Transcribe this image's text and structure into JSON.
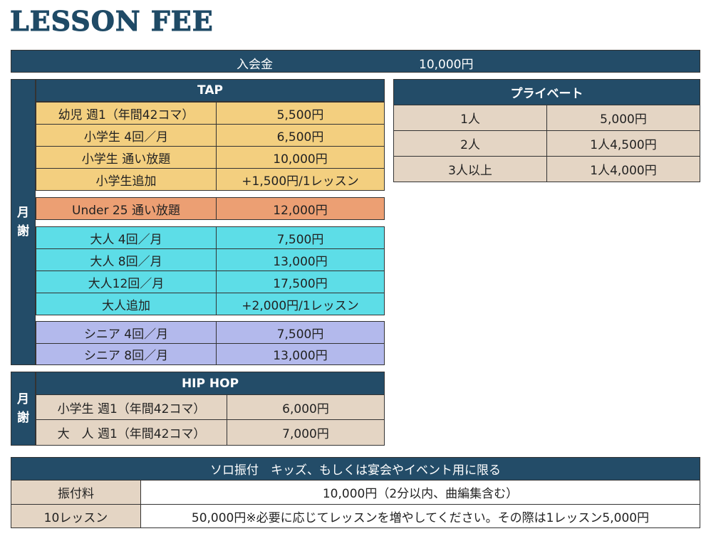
{
  "title": "LESSON FEE",
  "admission": {
    "label": "入会金",
    "price": "10,000円"
  },
  "tap": {
    "header": "TAP",
    "groups": [
      [
        {
          "label": "幼児 週1（年間42コマ）",
          "price": "5,500円"
        },
        {
          "label": "小学生 4回／月",
          "price": "6,500円"
        },
        {
          "label": "小学生 通い放題",
          "price": "10,000円"
        },
        {
          "label": "小学生追加",
          "price": "+1,500円/1レッスン"
        }
      ],
      [
        {
          "label": "Under 25 通い放題",
          "price": "12,000円"
        }
      ],
      [
        {
          "label": "大人 4回／月",
          "price": "7,500円"
        },
        {
          "label": "大人 8回／月",
          "price": "13,000円"
        },
        {
          "label": "大人12回／月",
          "price": "17,500円"
        },
        {
          "label": "大人追加",
          "price": "+2,000円/1レッスン"
        }
      ],
      [
        {
          "label": "シニア 4回／月",
          "price": "7,500円"
        },
        {
          "label": "シニア 8回／月",
          "price": "13,000円"
        }
      ]
    ]
  },
  "monthly_label": {
    "line1": "月",
    "line2": "謝"
  },
  "private": {
    "header": "プライベート",
    "rows": [
      {
        "label": "1人",
        "price": "5,000円"
      },
      {
        "label": "2人",
        "price": "1人4,500円"
      },
      {
        "label": "3人以上",
        "price": "1人4,000円"
      }
    ]
  },
  "hiphop": {
    "header": "HIP HOP",
    "rows": [
      {
        "label": "小学生 週1（年間42コマ）",
        "price": "6,000円"
      },
      {
        "label": "大　人 週1（年間42コマ）",
        "price": "7,000円"
      }
    ]
  },
  "solo": {
    "header": "ソロ振付　キッズ、もしくは宴会やイベント用に限る",
    "rows": [
      {
        "label": "振付料",
        "price": "10,000円（2分以内、曲編集含む）"
      },
      {
        "label": "10レッスン",
        "price": "50,000円※必要に応じてレッスンを増やしてください。その際は1レッスン5,000円"
      }
    ]
  }
}
